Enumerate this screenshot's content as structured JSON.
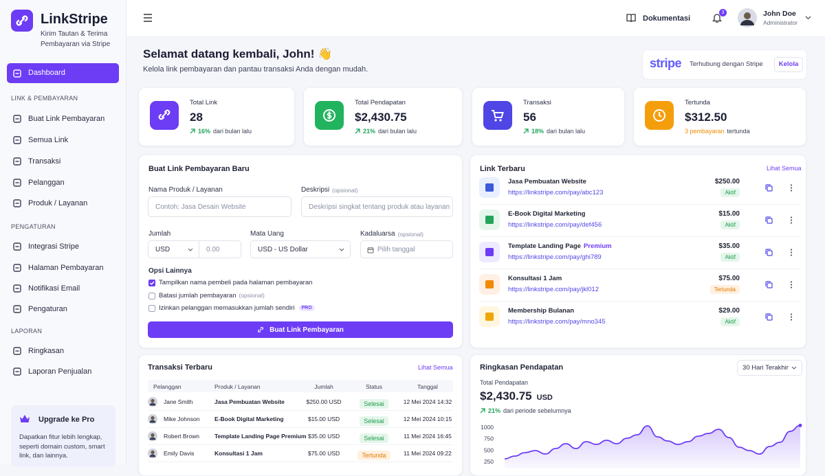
{
  "sidebar": {
    "brand": "LinkStripe",
    "tagline": "Kirim Tautan & Terima Pembayaran via Stripe",
    "active": "Dashboard",
    "sections": [
      {
        "title": "LINK & PEMBAYARAN",
        "items": [
          "Buat Link Pembayaran",
          "Semua Link",
          "Transaksi",
          "Pelanggan",
          "Produk / Layanan"
        ]
      },
      {
        "title": "PENGATURAN",
        "items": [
          "Integrasi Stripe",
          "Halaman Pembayaran",
          "Notifikasi Email",
          "Pengaturan"
        ]
      },
      {
        "title": "LAPORAN",
        "items": [
          "Ringkasan",
          "Laporan Penjualan"
        ]
      }
    ],
    "promo": {
      "title": "Upgrade ke Pro",
      "text": "Dapatkan fitur lebih lengkap, seperti domain custom, smart link, dan lainnya."
    }
  },
  "topbar": {
    "docs": "Dokumentasi",
    "notifications": 3,
    "user": {
      "name": "John Doe",
      "role": "Administrator"
    }
  },
  "welcome": {
    "title": "Selamat datang kembali, John! 👋",
    "subtitle": "Kelola link pembayaran dan pantau transaksi Anda dengan mudah."
  },
  "stripe": {
    "logo": "stripe",
    "status": "Terhubung dengan Stripe",
    "action": "Kelola"
  },
  "stats": [
    {
      "label": "Total Link",
      "value": "28",
      "change": "16%",
      "note": "dari bulan lalu"
    },
    {
      "label": "Total Pendapatan",
      "value": "$2,430.75",
      "change": "21%",
      "note": "dari bulan lalu"
    },
    {
      "label": "Transaksi",
      "value": "56",
      "change": "18%",
      "note": "dari bulan lalu"
    },
    {
      "label": "Tertunda",
      "value": "$312.50",
      "change": "3 pembayaran",
      "note": "tertunda"
    }
  ],
  "form": {
    "title": "Buat Link Pembayaran Baru",
    "fields": {
      "name": {
        "label": "Nama Produk / Layanan",
        "placeholder": "Contoh: Jasa Desain Website"
      },
      "description": {
        "label": "Deskripsi",
        "note": "(opsional)",
        "placeholder": "Deskripsi singkat tentang produk atau layanan"
      },
      "amount": {
        "label": "Jumlah",
        "currency": "USD",
        "placeholder": "0.00"
      },
      "currency": {
        "label": "Mata Uang",
        "value": "USD - US Dollar"
      },
      "expiry": {
        "label": "Kadaluarsa",
        "note": "(opsional)",
        "placeholder": "Pilih tanggal"
      }
    },
    "options_title": "Opsi Lainnya",
    "options": [
      {
        "label": "Tampilkan nama pembeli pada halaman pembayaran",
        "checked": true
      },
      {
        "label": "Batasi jumlah pembayaran",
        "note": "(opsional)",
        "checked": false
      },
      {
        "label": "Izinkan pelanggan memasukkan jumlah sendiri",
        "badge": "PRO",
        "checked": false
      }
    ],
    "submit": "Buat Link Pembayaran"
  },
  "links": {
    "title": "Link Terbaru",
    "action": "Lihat Semua",
    "items": [
      {
        "name": "Jasa Pembuatan Website",
        "url": "https://linkstripe.com/pay/abc123",
        "price": "$250.00",
        "status": "Aktif"
      },
      {
        "name": "E-Book Digital Marketing",
        "url": "https://linkstripe.com/pay/def456",
        "price": "$15.00",
        "status": "Aktif"
      },
      {
        "name": "Template Landing Page",
        "badge": "Premium",
        "url": "https://linkstripe.com/pay/ghi789",
        "price": "$35.00",
        "status": "Aktif"
      },
      {
        "name": "Konsultasi 1 Jam",
        "url": "https://linkstripe.com/pay/jkl012",
        "price": "$75.00",
        "status": "Tertunda"
      },
      {
        "name": "Membership Bulanan",
        "url": "https://linkstripe.com/pay/mno345",
        "price": "$29.00",
        "status": "Aktif"
      }
    ]
  },
  "transactions": {
    "title": "Transaksi Terbaru",
    "action": "Lihat Semua",
    "columns": [
      "Pelanggan",
      "Produk / Layanan",
      "Jumlah",
      "Status",
      "Tanggal"
    ],
    "rows": [
      [
        "Jane Smith",
        "Jasa Pembuatan Website",
        "$250.00 USD",
        "Selesai",
        "12 Mei 2024 14:32"
      ],
      [
        "Mike Johnson",
        "E-Book Digital Marketing",
        "$15.00 USD",
        "Selesai",
        "12 Mei 2024 10:15"
      ],
      [
        "Robert Brown",
        "Template Landing Page Premium",
        "$35.00 USD",
        "Selesai",
        "11 Mei 2024 16:45"
      ],
      [
        "Emily Davis",
        "Konsultasi 1 Jam",
        "$75.00 USD",
        "Tertunda",
        "11 Mei 2024 09:22"
      ]
    ]
  },
  "revenue": {
    "title": "Ringkasan Pendapatan",
    "period": "30 Hari Terakhir",
    "label": "Total Pendapatan",
    "amount": "$2,430.75",
    "currency": "USD",
    "change": "21%",
    "note": "dari periode sebelumnya",
    "chart": {
      "type": "line",
      "color": "#6d3cf5",
      "ylim": [
        250,
        1000
      ],
      "yticks": [
        250,
        500,
        750,
        1000
      ],
      "values": [
        310,
        370,
        445,
        490,
        415,
        535,
        640,
        535,
        685,
        625,
        715,
        640,
        760,
        835,
        1030,
        790,
        700,
        625,
        685,
        805,
        865,
        955,
        775,
        565,
        490,
        415,
        580,
        670,
        910,
        1040
      ]
    }
  }
}
